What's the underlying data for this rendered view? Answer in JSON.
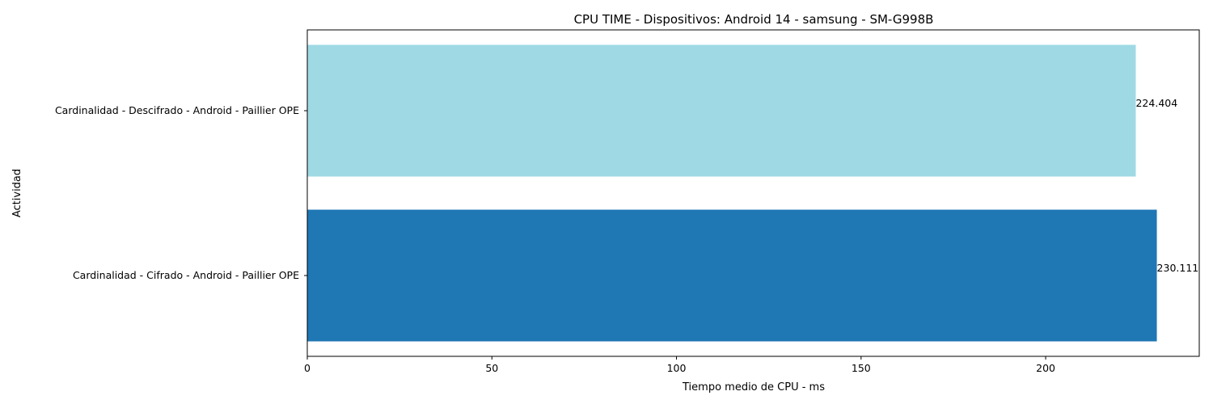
{
  "chart_data": {
    "type": "bar",
    "orientation": "horizontal",
    "title": "CPU TIME - Dispositivos: Android 14 - samsung - SM-G998B",
    "xlabel": "Tiempo medio de CPU - ms",
    "ylabel": "Actividad",
    "xlim": [
      0,
      241.6
    ],
    "xticks": [
      0,
      50,
      100,
      150,
      200
    ],
    "categories": [
      "Cardinalidad - Cifrado - Android - Paillier OPE",
      "Cardinalidad - Descifrado - Android - Paillier OPE"
    ],
    "values": [
      230.111,
      224.404
    ],
    "value_labels": [
      "230.111",
      "224.404"
    ],
    "colors": [
      "#1f77b4",
      "#9fdae4"
    ],
    "grid": false
  }
}
